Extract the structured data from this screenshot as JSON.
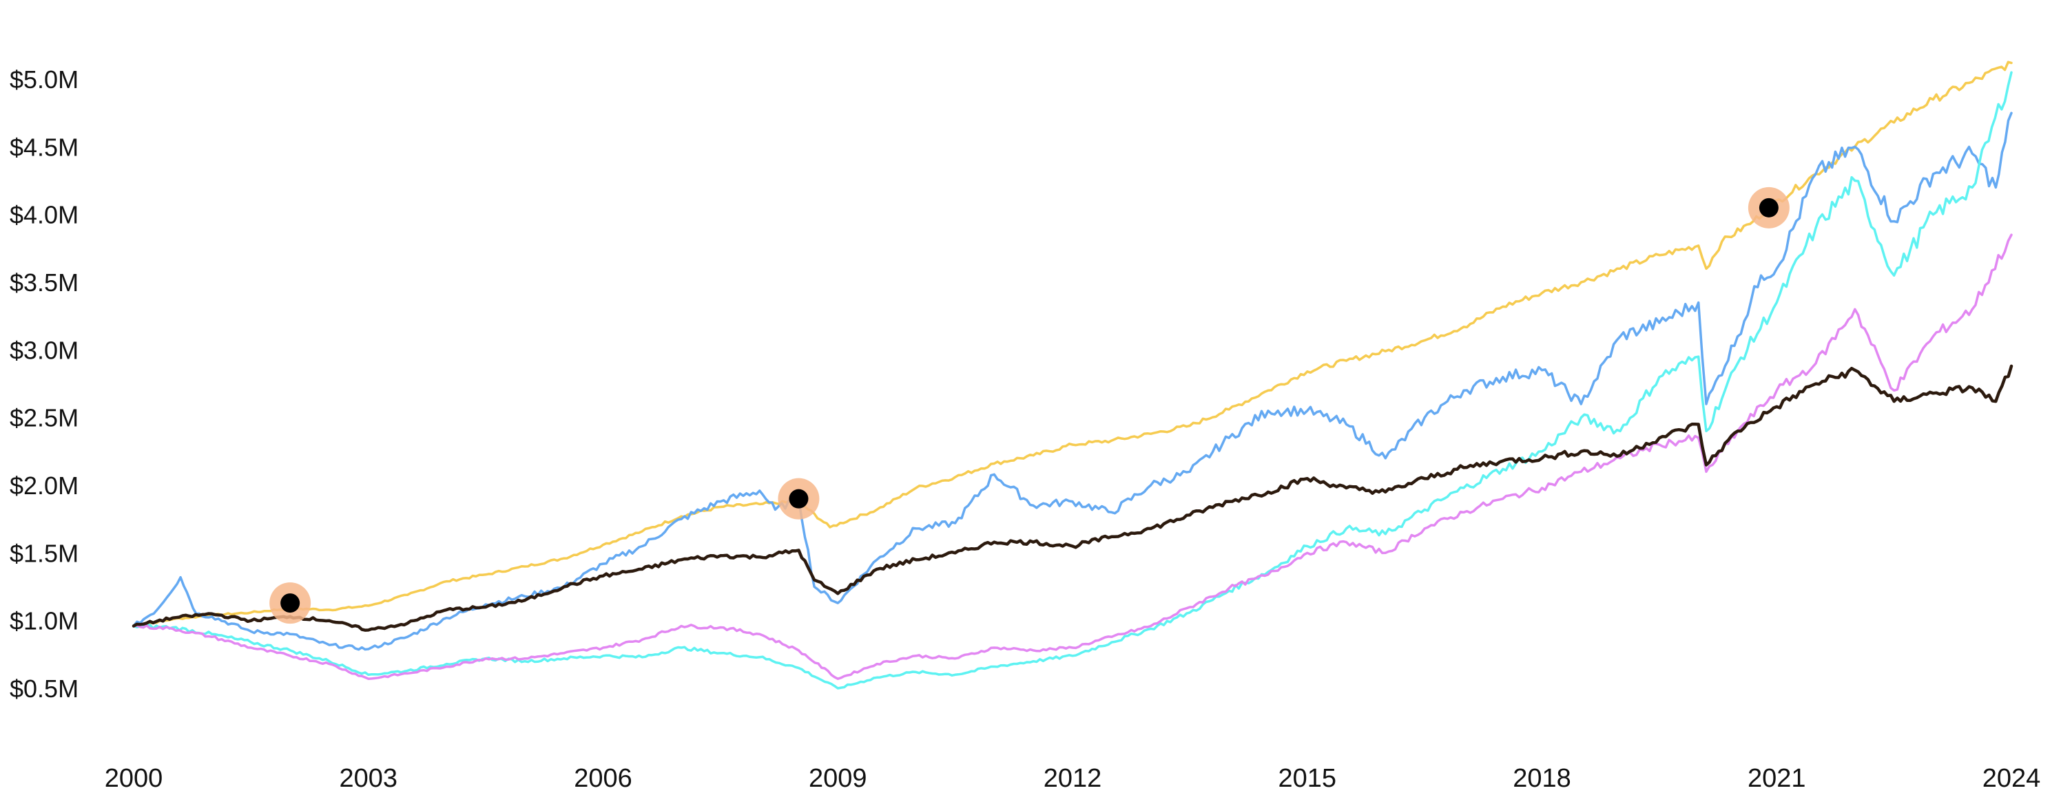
{
  "chart_data": {
    "type": "line",
    "title": "",
    "xlabel": "",
    "ylabel": "",
    "x_ticks": [
      2000,
      2003,
      2006,
      2009,
      2012,
      2015,
      2018,
      2021,
      2024
    ],
    "x_tick_labels": [
      "2000",
      "2003",
      "2006",
      "2009",
      "2012",
      "2015",
      "2018",
      "2021",
      "2024"
    ],
    "y_ticks": [
      0.5,
      1.0,
      1.5,
      2.0,
      2.5,
      3.0,
      3.5,
      4.0,
      4.5,
      5.0
    ],
    "y_tick_labels": [
      "$0.5M",
      "$1.0M",
      "$1.5M",
      "$2.0M",
      "$2.5M",
      "$3.0M",
      "$3.5M",
      "$4.0M",
      "$4.5M",
      "$5.0M"
    ],
    "xlim": [
      2000,
      2024
    ],
    "ylim": [
      0.1,
      5.6
    ],
    "grid": false,
    "series": [
      {
        "color": "#f6cb50",
        "points": [
          [
            2000.0,
            0.96
          ],
          [
            2000.5,
            1.01
          ],
          [
            2001.0,
            1.04
          ],
          [
            2001.5,
            1.06
          ],
          [
            2002.0,
            1.09
          ],
          [
            2002.5,
            1.08
          ],
          [
            2003.0,
            1.11
          ],
          [
            2003.5,
            1.19
          ],
          [
            2004.0,
            1.29
          ],
          [
            2004.5,
            1.34
          ],
          [
            2005.0,
            1.4
          ],
          [
            2005.5,
            1.46
          ],
          [
            2006.0,
            1.56
          ],
          [
            2006.5,
            1.66
          ],
          [
            2007.0,
            1.77
          ],
          [
            2007.5,
            1.84
          ],
          [
            2008.0,
            1.86
          ],
          [
            2008.5,
            1.88
          ],
          [
            2008.9,
            1.69
          ],
          [
            2009.5,
            1.82
          ],
          [
            2010.0,
            1.98
          ],
          [
            2010.5,
            2.06
          ],
          [
            2011.0,
            2.16
          ],
          [
            2011.5,
            2.22
          ],
          [
            2012.0,
            2.3
          ],
          [
            2012.5,
            2.33
          ],
          [
            2013.0,
            2.38
          ],
          [
            2013.5,
            2.44
          ],
          [
            2014.0,
            2.56
          ],
          [
            2014.5,
            2.7
          ],
          [
            2015.0,
            2.84
          ],
          [
            2015.5,
            2.92
          ],
          [
            2016.0,
            2.99
          ],
          [
            2016.5,
            3.07
          ],
          [
            2017.0,
            3.17
          ],
          [
            2017.5,
            3.32
          ],
          [
            2018.0,
            3.42
          ],
          [
            2018.5,
            3.5
          ],
          [
            2019.0,
            3.6
          ],
          [
            2019.5,
            3.7
          ],
          [
            2020.0,
            3.77
          ],
          [
            2020.1,
            3.6
          ],
          [
            2020.3,
            3.8
          ],
          [
            2020.7,
            3.95
          ],
          [
            2020.9,
            4.05
          ],
          [
            2021.5,
            4.3
          ],
          [
            2022.0,
            4.5
          ],
          [
            2022.5,
            4.68
          ],
          [
            2023.0,
            4.85
          ],
          [
            2023.5,
            4.98
          ],
          [
            2024.0,
            5.12
          ]
        ]
      },
      {
        "color": "#64a9f2",
        "points": [
          [
            2000.0,
            0.96
          ],
          [
            2000.3,
            1.08
          ],
          [
            2000.6,
            1.32
          ],
          [
            2000.8,
            1.05
          ],
          [
            2001.0,
            1.03
          ],
          [
            2001.5,
            0.92
          ],
          [
            2002.0,
            0.9
          ],
          [
            2002.5,
            0.82
          ],
          [
            2003.0,
            0.79
          ],
          [
            2003.5,
            0.88
          ],
          [
            2004.0,
            1.02
          ],
          [
            2004.5,
            1.12
          ],
          [
            2005.0,
            1.18
          ],
          [
            2005.5,
            1.25
          ],
          [
            2006.0,
            1.42
          ],
          [
            2006.5,
            1.55
          ],
          [
            2007.0,
            1.75
          ],
          [
            2007.5,
            1.88
          ],
          [
            2008.0,
            1.96
          ],
          [
            2008.2,
            1.82
          ],
          [
            2008.5,
            1.9
          ],
          [
            2008.7,
            1.25
          ],
          [
            2009.0,
            1.13
          ],
          [
            2009.5,
            1.45
          ],
          [
            2010.0,
            1.68
          ],
          [
            2010.5,
            1.72
          ],
          [
            2011.0,
            2.08
          ],
          [
            2011.5,
            1.85
          ],
          [
            2012.0,
            1.88
          ],
          [
            2012.5,
            1.8
          ],
          [
            2013.0,
            2.0
          ],
          [
            2013.5,
            2.1
          ],
          [
            2014.0,
            2.35
          ],
          [
            2014.5,
            2.55
          ],
          [
            2015.0,
            2.55
          ],
          [
            2015.5,
            2.45
          ],
          [
            2016.0,
            2.2
          ],
          [
            2016.5,
            2.5
          ],
          [
            2017.0,
            2.7
          ],
          [
            2017.5,
            2.8
          ],
          [
            2018.0,
            2.85
          ],
          [
            2018.5,
            2.6
          ],
          [
            2019.0,
            3.1
          ],
          [
            2019.5,
            3.2
          ],
          [
            2020.0,
            3.35
          ],
          [
            2020.1,
            2.6
          ],
          [
            2020.5,
            3.1
          ],
          [
            2020.8,
            3.55
          ],
          [
            2021.0,
            3.6
          ],
          [
            2021.5,
            4.3
          ],
          [
            2022.0,
            4.5
          ],
          [
            2022.5,
            3.95
          ],
          [
            2023.0,
            4.3
          ],
          [
            2023.5,
            4.45
          ],
          [
            2023.8,
            4.2
          ],
          [
            2024.0,
            4.75
          ]
        ]
      },
      {
        "color": "#5ef2f2",
        "points": [
          [
            2000.0,
            0.96
          ],
          [
            2000.5,
            0.95
          ],
          [
            2001.0,
            0.9
          ],
          [
            2001.5,
            0.84
          ],
          [
            2002.0,
            0.78
          ],
          [
            2002.5,
            0.7
          ],
          [
            2003.0,
            0.6
          ],
          [
            2003.5,
            0.63
          ],
          [
            2004.0,
            0.68
          ],
          [
            2004.5,
            0.72
          ],
          [
            2005.0,
            0.7
          ],
          [
            2005.5,
            0.72
          ],
          [
            2006.0,
            0.74
          ],
          [
            2006.5,
            0.73
          ],
          [
            2007.0,
            0.8
          ],
          [
            2007.5,
            0.76
          ],
          [
            2008.0,
            0.73
          ],
          [
            2008.5,
            0.65
          ],
          [
            2009.0,
            0.5
          ],
          [
            2009.5,
            0.58
          ],
          [
            2010.0,
            0.62
          ],
          [
            2010.5,
            0.6
          ],
          [
            2011.0,
            0.66
          ],
          [
            2011.5,
            0.7
          ],
          [
            2012.0,
            0.74
          ],
          [
            2012.5,
            0.84
          ],
          [
            2013.0,
            0.94
          ],
          [
            2013.5,
            1.06
          ],
          [
            2014.0,
            1.22
          ],
          [
            2014.5,
            1.36
          ],
          [
            2015.0,
            1.55
          ],
          [
            2015.5,
            1.68
          ],
          [
            2016.0,
            1.64
          ],
          [
            2016.5,
            1.82
          ],
          [
            2017.0,
            1.98
          ],
          [
            2017.5,
            2.12
          ],
          [
            2018.0,
            2.25
          ],
          [
            2018.5,
            2.5
          ],
          [
            2019.0,
            2.4
          ],
          [
            2019.5,
            2.8
          ],
          [
            2020.0,
            2.95
          ],
          [
            2020.1,
            2.4
          ],
          [
            2020.5,
            2.9
          ],
          [
            2021.0,
            3.35
          ],
          [
            2021.5,
            3.9
          ],
          [
            2022.0,
            4.25
          ],
          [
            2022.5,
            3.55
          ],
          [
            2023.0,
            4.0
          ],
          [
            2023.5,
            4.2
          ],
          [
            2024.0,
            5.05
          ]
        ]
      },
      {
        "color": "#e287f2",
        "points": [
          [
            2000.0,
            0.96
          ],
          [
            2000.5,
            0.94
          ],
          [
            2001.0,
            0.88
          ],
          [
            2001.5,
            0.8
          ],
          [
            2002.0,
            0.74
          ],
          [
            2002.5,
            0.68
          ],
          [
            2003.0,
            0.57
          ],
          [
            2003.5,
            0.61
          ],
          [
            2004.0,
            0.66
          ],
          [
            2004.5,
            0.72
          ],
          [
            2005.0,
            0.72
          ],
          [
            2005.5,
            0.76
          ],
          [
            2006.0,
            0.8
          ],
          [
            2006.5,
            0.86
          ],
          [
            2007.0,
            0.96
          ],
          [
            2007.5,
            0.95
          ],
          [
            2008.0,
            0.9
          ],
          [
            2008.5,
            0.78
          ],
          [
            2009.0,
            0.57
          ],
          [
            2009.5,
            0.68
          ],
          [
            2010.0,
            0.74
          ],
          [
            2010.5,
            0.72
          ],
          [
            2011.0,
            0.8
          ],
          [
            2011.5,
            0.78
          ],
          [
            2012.0,
            0.8
          ],
          [
            2012.5,
            0.88
          ],
          [
            2013.0,
            0.96
          ],
          [
            2013.5,
            1.1
          ],
          [
            2014.0,
            1.24
          ],
          [
            2014.5,
            1.34
          ],
          [
            2015.0,
            1.5
          ],
          [
            2015.5,
            1.58
          ],
          [
            2016.0,
            1.5
          ],
          [
            2016.5,
            1.68
          ],
          [
            2017.0,
            1.8
          ],
          [
            2017.5,
            1.9
          ],
          [
            2018.0,
            1.98
          ],
          [
            2018.5,
            2.1
          ],
          [
            2019.0,
            2.2
          ],
          [
            2019.5,
            2.3
          ],
          [
            2020.0,
            2.35
          ],
          [
            2020.1,
            2.1
          ],
          [
            2020.5,
            2.4
          ],
          [
            2021.0,
            2.7
          ],
          [
            2021.5,
            2.9
          ],
          [
            2022.0,
            3.3
          ],
          [
            2022.5,
            2.7
          ],
          [
            2023.0,
            3.1
          ],
          [
            2023.5,
            3.3
          ],
          [
            2024.0,
            3.85
          ]
        ]
      },
      {
        "color": "#2c1a0e",
        "points": [
          [
            2000.0,
            0.96
          ],
          [
            2000.5,
            1.02
          ],
          [
            2001.0,
            1.05
          ],
          [
            2001.5,
            1.0
          ],
          [
            2002.0,
            1.03
          ],
          [
            2002.5,
            1.0
          ],
          [
            2003.0,
            0.93
          ],
          [
            2003.5,
            0.98
          ],
          [
            2004.0,
            1.08
          ],
          [
            2004.5,
            1.1
          ],
          [
            2005.0,
            1.15
          ],
          [
            2005.5,
            1.25
          ],
          [
            2006.0,
            1.33
          ],
          [
            2006.5,
            1.38
          ],
          [
            2007.0,
            1.45
          ],
          [
            2007.5,
            1.48
          ],
          [
            2008.0,
            1.47
          ],
          [
            2008.5,
            1.52
          ],
          [
            2008.7,
            1.3
          ],
          [
            2009.0,
            1.2
          ],
          [
            2009.5,
            1.38
          ],
          [
            2010.0,
            1.45
          ],
          [
            2010.5,
            1.5
          ],
          [
            2011.0,
            1.58
          ],
          [
            2011.5,
            1.58
          ],
          [
            2012.0,
            1.55
          ],
          [
            2012.5,
            1.62
          ],
          [
            2013.0,
            1.68
          ],
          [
            2013.5,
            1.78
          ],
          [
            2014.0,
            1.88
          ],
          [
            2014.5,
            1.95
          ],
          [
            2015.0,
            2.05
          ],
          [
            2015.5,
            1.98
          ],
          [
            2016.0,
            1.95
          ],
          [
            2016.5,
            2.05
          ],
          [
            2017.0,
            2.13
          ],
          [
            2017.5,
            2.18
          ],
          [
            2018.0,
            2.2
          ],
          [
            2018.5,
            2.25
          ],
          [
            2019.0,
            2.22
          ],
          [
            2019.5,
            2.35
          ],
          [
            2020.0,
            2.45
          ],
          [
            2020.1,
            2.15
          ],
          [
            2020.5,
            2.4
          ],
          [
            2021.0,
            2.58
          ],
          [
            2021.5,
            2.75
          ],
          [
            2022.0,
            2.85
          ],
          [
            2022.5,
            2.62
          ],
          [
            2023.0,
            2.68
          ],
          [
            2023.5,
            2.72
          ],
          [
            2023.8,
            2.62
          ],
          [
            2024.0,
            2.88
          ]
        ]
      }
    ],
    "markers": [
      {
        "x": 2002.0,
        "y": 1.13
      },
      {
        "x": 2008.5,
        "y": 1.9
      },
      {
        "x": 2020.9,
        "y": 4.05
      }
    ],
    "marker_fill": "#000000",
    "marker_halo": "#f7b78b"
  }
}
